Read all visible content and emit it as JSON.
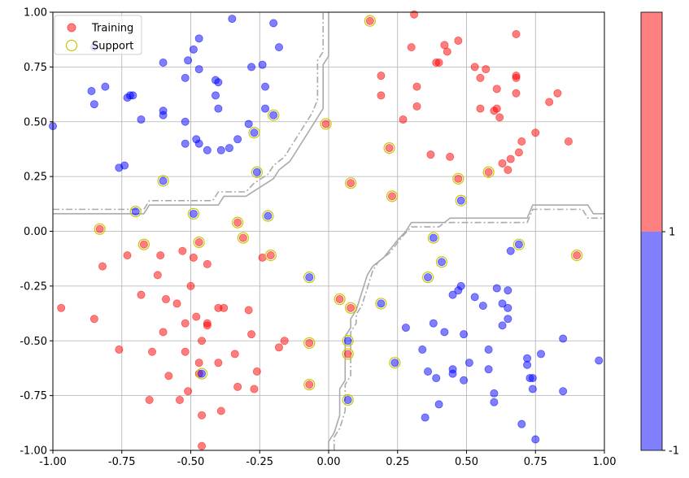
{
  "chart_data": {
    "type": "scatter",
    "title": "",
    "xlabel": "",
    "ylabel": "",
    "xlim": [
      -1.0,
      1.0
    ],
    "ylim": [
      -1.0,
      1.0
    ],
    "grid": true,
    "legend_placement": "top-left",
    "xticks": [
      "-1.00",
      "-0.75",
      "-0.50",
      "-0.25",
      "0.00",
      "0.25",
      "0.50",
      "0.75",
      "1.00"
    ],
    "yticks": [
      "-1.00",
      "-0.75",
      "-0.50",
      "-0.25",
      "0.00",
      "0.25",
      "0.50",
      "0.75",
      "1.00"
    ],
    "legend": [
      {
        "label": "Training",
        "marker": "filled-circle",
        "color": "#ff4444"
      },
      {
        "label": "Support",
        "marker": "hollow-circle",
        "color": "#c8c800"
      }
    ],
    "colors": {
      "class_pos": "#ff0000",
      "class_neg": "#0000ff",
      "support": "#c8c800",
      "boundary": "#aaaaaa"
    },
    "colorbar": {
      "labels": [
        "1",
        "-1"
      ],
      "colors": [
        "#ff8080",
        "#8080ff"
      ]
    },
    "series": [
      {
        "class": 1,
        "points": [
          [
            -0.97,
            -0.35
          ],
          [
            -0.85,
            -0.4
          ],
          [
            -0.82,
            -0.16
          ],
          [
            -0.83,
            0.01
          ],
          [
            -0.76,
            -0.54
          ],
          [
            -0.73,
            -0.11
          ],
          [
            -0.68,
            -0.29
          ],
          [
            -0.67,
            -0.06
          ],
          [
            -0.65,
            -0.77
          ],
          [
            -0.64,
            -0.55
          ],
          [
            -0.62,
            -0.2
          ],
          [
            -0.61,
            -0.11
          ],
          [
            -0.6,
            -0.46
          ],
          [
            -0.59,
            -0.31
          ],
          [
            -0.58,
            -0.66
          ],
          [
            -0.55,
            -0.33
          ],
          [
            -0.54,
            -0.77
          ],
          [
            -0.53,
            -0.09
          ],
          [
            -0.52,
            -0.42
          ],
          [
            -0.52,
            -0.55
          ],
          [
            -0.51,
            -0.73
          ],
          [
            -0.5,
            -0.25
          ],
          [
            -0.49,
            -0.12
          ],
          [
            -0.48,
            -0.39
          ],
          [
            -0.47,
            -0.05
          ],
          [
            -0.47,
            -0.6
          ],
          [
            -0.47,
            -0.65
          ],
          [
            -0.46,
            -0.5
          ],
          [
            -0.46,
            -0.84
          ],
          [
            -0.46,
            -0.98
          ],
          [
            -0.44,
            -0.43
          ],
          [
            -0.44,
            -0.42
          ],
          [
            -0.44,
            -0.15
          ],
          [
            -0.4,
            -0.35
          ],
          [
            -0.4,
            -0.6
          ],
          [
            -0.39,
            -0.82
          ],
          [
            -0.38,
            -0.35
          ],
          [
            -0.34,
            -0.56
          ],
          [
            -0.33,
            -0.71
          ],
          [
            -0.33,
            0.04
          ],
          [
            -0.31,
            -0.03
          ],
          [
            -0.29,
            -0.36
          ],
          [
            -0.28,
            -0.47
          ],
          [
            -0.27,
            -0.72
          ],
          [
            -0.26,
            -0.64
          ],
          [
            -0.24,
            -0.12
          ],
          [
            -0.21,
            -0.11
          ],
          [
            -0.18,
            -0.53
          ],
          [
            -0.16,
            -0.5
          ],
          [
            -0.07,
            -0.51
          ],
          [
            -0.07,
            -0.7
          ],
          [
            -0.01,
            0.49
          ],
          [
            0.04,
            -0.31
          ],
          [
            0.07,
            -0.56
          ],
          [
            0.08,
            -0.35
          ],
          [
            0.08,
            0.22
          ],
          [
            0.15,
            0.96
          ],
          [
            0.19,
            0.71
          ],
          [
            0.19,
            0.62
          ],
          [
            0.22,
            0.38
          ],
          [
            0.23,
            0.16
          ],
          [
            0.27,
            0.51
          ],
          [
            0.3,
            0.84
          ],
          [
            0.31,
            0.99
          ],
          [
            0.32,
            0.66
          ],
          [
            0.32,
            0.57
          ],
          [
            0.37,
            0.35
          ],
          [
            0.39,
            0.77
          ],
          [
            0.4,
            0.77
          ],
          [
            0.42,
            0.85
          ],
          [
            0.43,
            0.82
          ],
          [
            0.44,
            0.34
          ],
          [
            0.47,
            0.87
          ],
          [
            0.47,
            0.24
          ],
          [
            0.53,
            0.75
          ],
          [
            0.55,
            0.7
          ],
          [
            0.55,
            0.56
          ],
          [
            0.57,
            0.74
          ],
          [
            0.58,
            0.27
          ],
          [
            0.6,
            0.55
          ],
          [
            0.61,
            0.56
          ],
          [
            0.61,
            0.65
          ],
          [
            0.62,
            0.52
          ],
          [
            0.63,
            0.31
          ],
          [
            0.65,
            0.28
          ],
          [
            0.66,
            0.33
          ],
          [
            0.68,
            0.9
          ],
          [
            0.68,
            0.71
          ],
          [
            0.68,
            0.7
          ],
          [
            0.68,
            0.63
          ],
          [
            0.69,
            0.36
          ],
          [
            0.7,
            0.41
          ],
          [
            0.75,
            0.45
          ],
          [
            0.8,
            0.59
          ],
          [
            0.83,
            0.63
          ],
          [
            0.87,
            0.41
          ],
          [
            0.9,
            -0.11
          ]
        ]
      },
      {
        "class": -1,
        "points": [
          [
            -1.0,
            0.48
          ],
          [
            -0.85,
            0.84
          ],
          [
            -0.86,
            0.64
          ],
          [
            -0.85,
            0.58
          ],
          [
            -0.81,
            0.66
          ],
          [
            -0.76,
            0.29
          ],
          [
            -0.74,
            0.3
          ],
          [
            -0.73,
            0.61
          ],
          [
            -0.72,
            0.62
          ],
          [
            -0.71,
            0.62
          ],
          [
            -0.7,
            0.09
          ],
          [
            -0.68,
            0.51
          ],
          [
            -0.6,
            0.55
          ],
          [
            -0.6,
            0.53
          ],
          [
            -0.6,
            0.77
          ],
          [
            -0.6,
            0.23
          ],
          [
            -0.52,
            0.7
          ],
          [
            -0.52,
            0.5
          ],
          [
            -0.52,
            0.4
          ],
          [
            -0.51,
            0.78
          ],
          [
            -0.49,
            0.83
          ],
          [
            -0.49,
            0.08
          ],
          [
            -0.48,
            0.42
          ],
          [
            -0.47,
            0.88
          ],
          [
            -0.47,
            0.74
          ],
          [
            -0.47,
            0.4
          ],
          [
            -0.44,
            0.37
          ],
          [
            -0.41,
            0.69
          ],
          [
            -0.41,
            0.62
          ],
          [
            -0.4,
            0.56
          ],
          [
            -0.4,
            0.68
          ],
          [
            -0.39,
            0.37
          ],
          [
            -0.36,
            0.38
          ],
          [
            -0.35,
            0.97
          ],
          [
            -0.33,
            0.42
          ],
          [
            -0.29,
            0.49
          ],
          [
            -0.28,
            0.75
          ],
          [
            -0.27,
            0.45
          ],
          [
            -0.26,
            0.27
          ],
          [
            -0.24,
            0.76
          ],
          [
            -0.23,
            0.66
          ],
          [
            -0.23,
            0.56
          ],
          [
            -0.22,
            0.07
          ],
          [
            -0.2,
            0.53
          ],
          [
            -0.2,
            0.95
          ],
          [
            -0.18,
            0.84
          ],
          [
            -0.07,
            -0.21
          ],
          [
            -0.46,
            -0.65
          ],
          [
            0.07,
            -0.5
          ],
          [
            0.07,
            -0.77
          ],
          [
            0.19,
            -0.33
          ],
          [
            0.24,
            -0.6
          ],
          [
            0.28,
            -0.44
          ],
          [
            0.34,
            -0.54
          ],
          [
            0.35,
            -0.85
          ],
          [
            0.36,
            -0.64
          ],
          [
            0.36,
            -0.21
          ],
          [
            0.38,
            -0.03
          ],
          [
            0.38,
            -0.42
          ],
          [
            0.39,
            -0.67
          ],
          [
            0.4,
            -0.79
          ],
          [
            0.41,
            -0.14
          ],
          [
            0.42,
            -0.46
          ],
          [
            0.45,
            -0.65
          ],
          [
            0.45,
            -0.63
          ],
          [
            0.45,
            -0.29
          ],
          [
            0.47,
            -0.27
          ],
          [
            0.48,
            -0.25
          ],
          [
            0.48,
            0.14
          ],
          [
            0.49,
            -0.47
          ],
          [
            0.49,
            -0.68
          ],
          [
            0.51,
            -0.6
          ],
          [
            0.53,
            -0.3
          ],
          [
            0.56,
            -0.34
          ],
          [
            0.58,
            -0.54
          ],
          [
            0.58,
            -0.63
          ],
          [
            0.6,
            -0.74
          ],
          [
            0.6,
            -0.78
          ],
          [
            0.61,
            -0.26
          ],
          [
            0.63,
            -0.43
          ],
          [
            0.63,
            -0.33
          ],
          [
            0.65,
            -0.4
          ],
          [
            0.65,
            -0.35
          ],
          [
            0.65,
            -0.27
          ],
          [
            0.66,
            -0.09
          ],
          [
            0.69,
            -0.06
          ],
          [
            0.7,
            -0.88
          ],
          [
            0.72,
            -0.58
          ],
          [
            0.72,
            -0.61
          ],
          [
            0.73,
            -0.67
          ],
          [
            0.74,
            -0.67
          ],
          [
            0.74,
            -0.72
          ],
          [
            0.75,
            -0.95
          ],
          [
            0.77,
            -0.56
          ],
          [
            0.85,
            -0.49
          ],
          [
            0.85,
            -0.73
          ],
          [
            0.98,
            -0.59
          ]
        ]
      }
    ],
    "support_vectors": [
      [
        -0.83,
        0.01
      ],
      [
        -0.7,
        0.09
      ],
      [
        -0.67,
        -0.06
      ],
      [
        -0.6,
        0.23
      ],
      [
        -0.49,
        0.08
      ],
      [
        -0.47,
        -0.05
      ],
      [
        -0.46,
        -0.65
      ],
      [
        -0.33,
        0.04
      ],
      [
        -0.31,
        -0.03
      ],
      [
        -0.27,
        0.45
      ],
      [
        -0.26,
        0.27
      ],
      [
        -0.22,
        0.07
      ],
      [
        -0.2,
        0.53
      ],
      [
        -0.21,
        -0.11
      ],
      [
        -0.07,
        -0.21
      ],
      [
        -0.07,
        -0.51
      ],
      [
        -0.07,
        -0.7
      ],
      [
        -0.01,
        0.49
      ],
      [
        0.04,
        -0.31
      ],
      [
        0.07,
        -0.5
      ],
      [
        0.07,
        -0.56
      ],
      [
        0.08,
        -0.35
      ],
      [
        0.07,
        -0.77
      ],
      [
        0.08,
        0.22
      ],
      [
        0.15,
        0.96
      ],
      [
        0.19,
        -0.33
      ],
      [
        0.22,
        0.38
      ],
      [
        0.23,
        0.16
      ],
      [
        0.24,
        -0.6
      ],
      [
        0.36,
        -0.21
      ],
      [
        0.38,
        -0.03
      ],
      [
        0.41,
        -0.14
      ],
      [
        0.47,
        0.24
      ],
      [
        0.48,
        0.14
      ],
      [
        0.58,
        0.27
      ],
      [
        0.69,
        -0.06
      ],
      [
        0.9,
        -0.11
      ]
    ],
    "decision_boundary": {
      "solid": [
        [
          -1.0,
          0.08
        ],
        [
          -0.67,
          0.08
        ],
        [
          -0.65,
          0.12
        ],
        [
          -0.4,
          0.12
        ],
        [
          -0.38,
          0.16
        ],
        [
          -0.3,
          0.16
        ],
        [
          -0.25,
          0.2
        ],
        [
          -0.2,
          0.24
        ],
        [
          -0.18,
          0.28
        ],
        [
          -0.14,
          0.32
        ],
        [
          -0.12,
          0.36
        ],
        [
          -0.1,
          0.4
        ],
        [
          -0.08,
          0.44
        ],
        [
          -0.06,
          0.48
        ],
        [
          -0.04,
          0.52
        ],
        [
          -0.02,
          0.56
        ],
        [
          -0.02,
          0.76
        ],
        [
          0.0,
          0.8
        ],
        [
          0.0,
          1.0
        ],
        null,
        [
          0.0,
          -1.0
        ],
        [
          0.0,
          -0.96
        ],
        [
          0.02,
          -0.92
        ],
        [
          0.04,
          -0.84
        ],
        [
          0.04,
          -0.72
        ],
        [
          0.06,
          -0.68
        ],
        [
          0.06,
          -0.48
        ],
        [
          0.08,
          -0.44
        ],
        [
          0.08,
          -0.4
        ],
        [
          0.1,
          -0.36
        ],
        [
          0.12,
          -0.28
        ],
        [
          0.14,
          -0.2
        ],
        [
          0.16,
          -0.16
        ],
        [
          0.2,
          -0.12
        ],
        [
          0.25,
          -0.04
        ],
        [
          0.28,
          0.0
        ],
        [
          0.3,
          0.04
        ],
        [
          0.42,
          0.04
        ],
        [
          0.44,
          0.06
        ],
        [
          0.72,
          0.06
        ],
        [
          0.74,
          0.12
        ],
        [
          0.94,
          0.12
        ],
        [
          0.96,
          0.08
        ],
        [
          1.0,
          0.08
        ]
      ],
      "dashdot": [
        [
          -1.0,
          0.1
        ],
        [
          -0.67,
          0.1
        ],
        [
          -0.65,
          0.14
        ],
        [
          -0.42,
          0.14
        ],
        [
          -0.4,
          0.18
        ],
        [
          -0.3,
          0.18
        ],
        [
          -0.27,
          0.22
        ],
        [
          -0.22,
          0.26
        ],
        [
          -0.2,
          0.3
        ],
        [
          -0.16,
          0.34
        ],
        [
          -0.14,
          0.38
        ],
        [
          -0.12,
          0.42
        ],
        [
          -0.1,
          0.46
        ],
        [
          -0.08,
          0.5
        ],
        [
          -0.06,
          0.54
        ],
        [
          -0.04,
          0.6
        ],
        [
          -0.04,
          0.78
        ],
        [
          -0.02,
          0.82
        ],
        [
          -0.02,
          1.0
        ],
        null,
        [
          0.02,
          -1.0
        ],
        [
          0.02,
          -0.94
        ],
        [
          0.04,
          -0.9
        ],
        [
          0.06,
          -0.82
        ],
        [
          0.06,
          -0.7
        ],
        [
          0.08,
          -0.66
        ],
        [
          0.08,
          -0.46
        ],
        [
          0.1,
          -0.42
        ],
        [
          0.1,
          -0.38
        ],
        [
          0.12,
          -0.34
        ],
        [
          0.14,
          -0.26
        ],
        [
          0.16,
          -0.18
        ],
        [
          0.18,
          -0.14
        ],
        [
          0.22,
          -0.1
        ],
        [
          0.27,
          -0.02
        ],
        [
          0.3,
          0.02
        ],
        [
          0.32,
          0.02
        ],
        [
          0.4,
          0.02
        ],
        [
          0.42,
          0.04
        ],
        [
          0.72,
          0.04
        ],
        [
          0.74,
          0.1
        ],
        [
          0.92,
          0.1
        ],
        [
          0.94,
          0.06
        ],
        [
          1.0,
          0.06
        ]
      ]
    }
  }
}
